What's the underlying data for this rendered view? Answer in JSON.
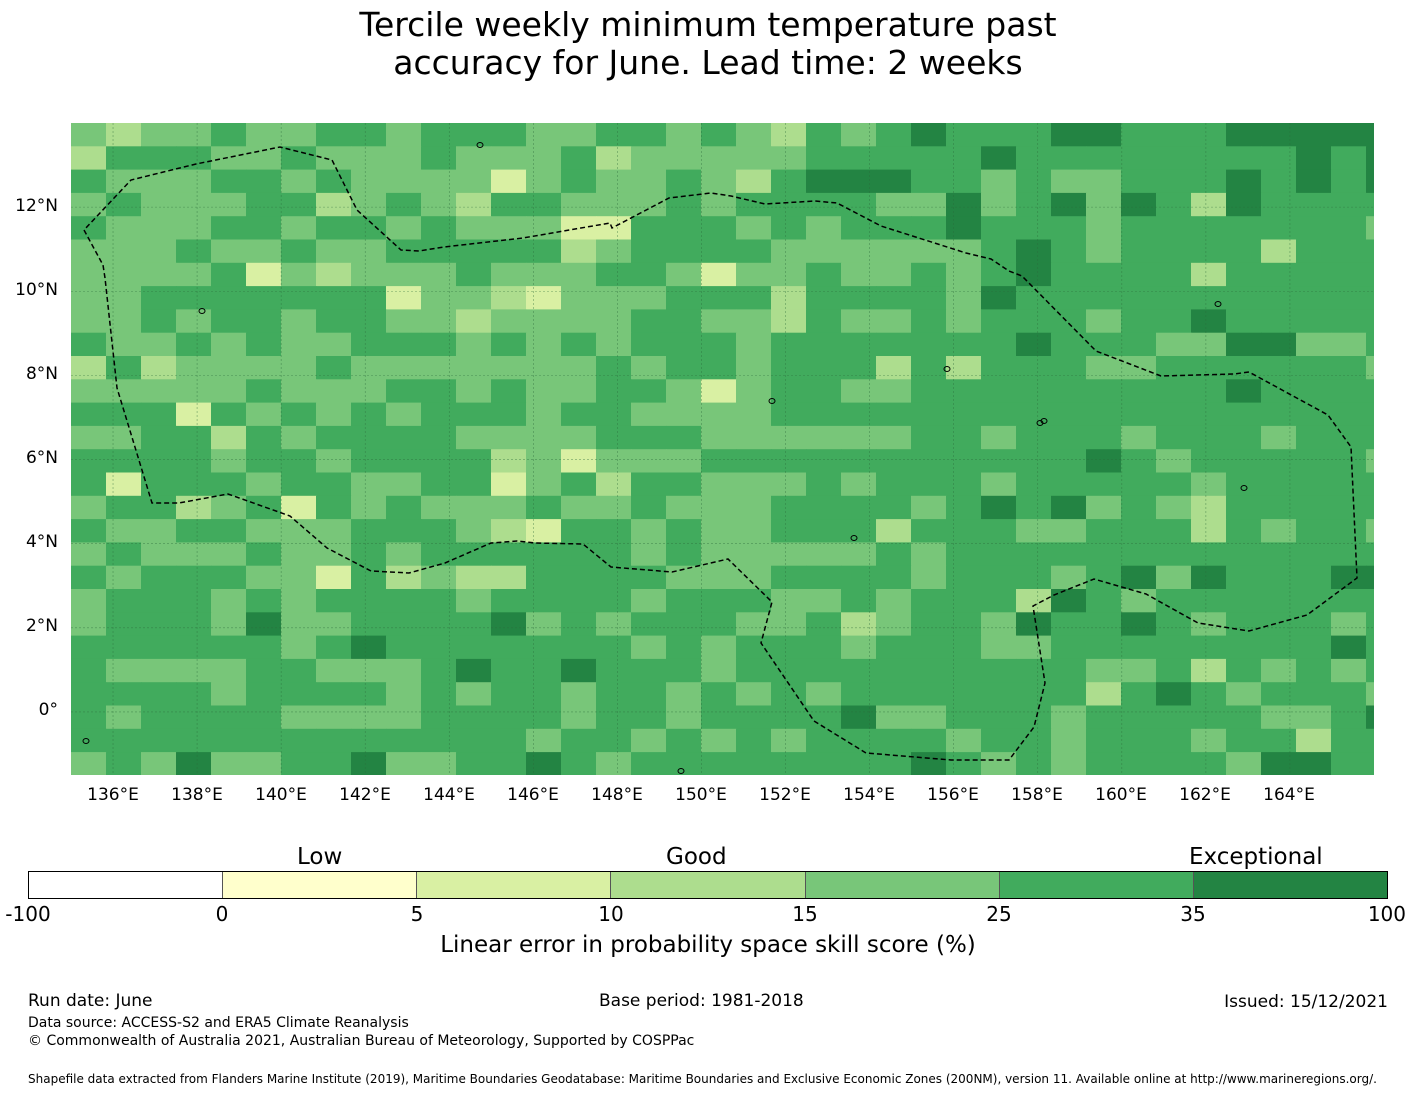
{
  "title_line1": "Tercile weekly minimum temperature past",
  "title_line2": "accuracy for June. Lead time: 2 weeks",
  "map": {
    "lat_labels": [
      "12°N",
      "10°N",
      "8°N",
      "6°N",
      "4°N",
      "2°N",
      "0°"
    ],
    "lon_labels": [
      "136°E",
      "138°E",
      "140°E",
      "142°E",
      "144°E",
      "146°E",
      "148°E",
      "150°E",
      "152°E",
      "154°E",
      "156°E",
      "158°E",
      "160°E",
      "162°E",
      "164°E"
    ],
    "lat_values": [
      12,
      10,
      8,
      6,
      4,
      2,
      0
    ],
    "lon_values": [
      136,
      138,
      140,
      142,
      144,
      146,
      148,
      150,
      152,
      154,
      156,
      158,
      160,
      162,
      164
    ],
    "extent": {
      "lon_min": 135.0,
      "lon_max": 166.0,
      "lat_min": -1.5,
      "lat_max": 14.0
    },
    "grid_cell_deg": 0.83,
    "dominant_category": "25-35",
    "region_boundary": "Federated States of Micronesia EEZ (dashed)"
  },
  "colorbar": {
    "categories": [
      {
        "label": "Low"
      },
      {
        "label": "Good"
      },
      {
        "label": "Exceptional"
      }
    ],
    "ticks": [
      "-100",
      "0",
      "5",
      "10",
      "15",
      "25",
      "35",
      "100"
    ],
    "colors": [
      "#ffffff",
      "#ffffcc",
      "#d9f0a3",
      "#addd8e",
      "#78c679",
      "#41ab5d",
      "#238443"
    ],
    "title": "Linear error in probability space skill score (%)"
  },
  "footer": {
    "run_date": "Run date: June",
    "base_period": "Base period: 1981-2018",
    "issued": "Issued: 15/12/2021",
    "data_source": "Data source: ACCESS-S2 and ERA5 Climate Reanalysis",
    "copyright": "© Commonwealth of Australia 2021, Australian Bureau of Meteorology, Supported by COSPPac",
    "shapefile": "Shapefile data extracted from Flanders Marine Institute (2019), Maritime Boundaries Geodatabase: Maritime Boundaries and Exclusive Economic Zones (200NM), version 11. Available online at http://www.marineregions.org/."
  }
}
